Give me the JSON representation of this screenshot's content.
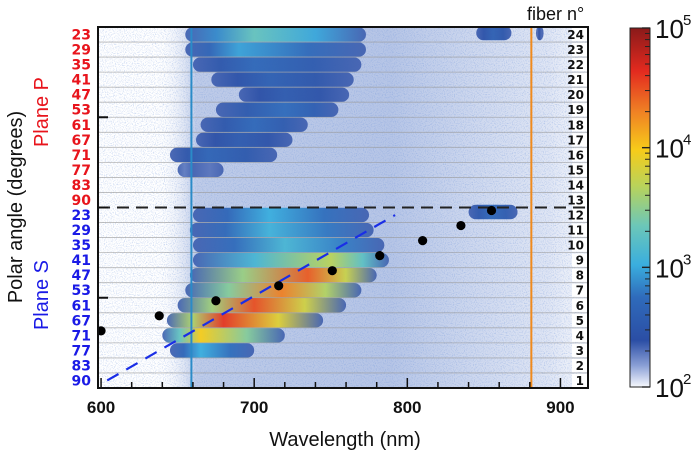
{
  "chart_data": {
    "type": "heatmap",
    "title": "",
    "xlabel": "Wavelength (nm)",
    "ylabel": "Polar angle (degrees)",
    "xlim": [
      598,
      918
    ],
    "xticks": [
      600,
      700,
      800,
      900
    ],
    "colorbar": {
      "scale": "log",
      "range": [
        100,
        100000
      ],
      "ticks": [
        {
          "base": "10",
          "exp": "2"
        },
        {
          "base": "10",
          "exp": "3"
        },
        {
          "base": "10",
          "exp": "4"
        },
        {
          "base": "10",
          "exp": "5"
        }
      ],
      "colors": [
        "#ffffff",
        "#2e4fa8",
        "#3aa8d8",
        "#9ccf6a",
        "#f5cc1a",
        "#ef7a22",
        "#e02020",
        "#8a1a1a"
      ]
    },
    "fiber_header": "fiber n°",
    "planes": [
      {
        "name": "Plane P",
        "color": "#e8141c",
        "angles": [
          "23",
          "29",
          "35",
          "41",
          "47",
          "53",
          "61",
          "67",
          "71",
          "77",
          "83",
          "90"
        ],
        "fibers": [
          "24",
          "23",
          "22",
          "21",
          "20",
          "19",
          "18",
          "17",
          "16",
          "15",
          "14",
          "13"
        ]
      },
      {
        "name": "Plane S",
        "color": "#1a1ae6",
        "angles": [
          "23",
          "29",
          "35",
          "41",
          "47",
          "53",
          "61",
          "67",
          "71",
          "77",
          "83",
          "90"
        ],
        "fibers": [
          "12",
          "11",
          "10",
          "9",
          "8",
          "7",
          "6",
          "5",
          "4",
          "3",
          "2",
          "1"
        ]
      }
    ],
    "vertical_lines": [
      {
        "name": "blue-cutoff",
        "x": 659,
        "color": "#2a8bc8"
      },
      {
        "name": "orange-cutoff",
        "x": 881,
        "color": "#f08a1c"
      }
    ],
    "plane_divider": {
      "between_fibers": [
        12,
        13
      ],
      "style": "dashed",
      "color": "#222222"
    },
    "fit_line": {
      "color": "#1a2ee6",
      "style": "dashed",
      "points": [
        [
          604,
          1
        ],
        [
          792,
          12
        ]
      ]
    },
    "markers": [
      {
        "wavelength": 600,
        "fiber": 4.3
      },
      {
        "wavelength": 638,
        "fiber": 5.3
      },
      {
        "wavelength": 675,
        "fiber": 6.3
      },
      {
        "wavelength": 716,
        "fiber": 7.3
      },
      {
        "wavelength": 751,
        "fiber": 8.3
      },
      {
        "wavelength": 782,
        "fiber": 9.3
      },
      {
        "wavelength": 810,
        "fiber": 10.3
      },
      {
        "wavelength": 835,
        "fiber": 11.3
      },
      {
        "wavelength": 855,
        "fiber": 12.3
      }
    ],
    "bands": [
      {
        "fiber": 24,
        "start": 655,
        "end": 773,
        "peak_log": 3.3,
        "peak_at": 700
      },
      {
        "fiber": 23,
        "start": 655,
        "end": 773,
        "peak_log": 2.95,
        "peak_at": 690
      },
      {
        "fiber": 22,
        "start": 660,
        "end": 770,
        "peak_log": 2.7,
        "peak_at": 700
      },
      {
        "fiber": 21,
        "start": 672,
        "end": 765,
        "peak_log": 2.6,
        "peak_at": 710
      },
      {
        "fiber": 20,
        "start": 690,
        "end": 762,
        "peak_log": 2.55,
        "peak_at": 720
      },
      {
        "fiber": 19,
        "start": 675,
        "end": 755,
        "peak_log": 2.75,
        "peak_at": 720
      },
      {
        "fiber": 18,
        "start": 665,
        "end": 735,
        "peak_log": 2.7,
        "peak_at": 700
      },
      {
        "fiber": 17,
        "start": 662,
        "end": 725,
        "peak_log": 2.55,
        "peak_at": 690
      },
      {
        "fiber": 16,
        "start": 645,
        "end": 715,
        "peak_log": 2.65,
        "peak_at": 670
      },
      {
        "fiber": 15,
        "start": 650,
        "end": 680,
        "peak_log": 2.35,
        "peak_at": 660
      },
      {
        "fiber": 12,
        "start": 660,
        "end": 775,
        "peak_log": 3.0,
        "peak_at": 710
      },
      {
        "fiber": 11,
        "start": 658,
        "end": 778,
        "peak_log": 3.05,
        "peak_at": 710
      },
      {
        "fiber": 10,
        "start": 660,
        "end": 785,
        "peak_log": 3.1,
        "peak_at": 720
      },
      {
        "fiber": 9,
        "start": 660,
        "end": 788,
        "peak_log": 3.7,
        "peak_at": 750
      },
      {
        "fiber": 8,
        "start": 658,
        "end": 780,
        "peak_log": 4.45,
        "peak_at": 735
      },
      {
        "fiber": 7,
        "start": 655,
        "end": 770,
        "peak_log": 4.3,
        "peak_at": 718
      },
      {
        "fiber": 6,
        "start": 650,
        "end": 760,
        "peak_log": 4.5,
        "peak_at": 700
      },
      {
        "fiber": 5,
        "start": 643,
        "end": 745,
        "peak_log": 4.6,
        "peak_at": 680
      },
      {
        "fiber": 4,
        "start": 640,
        "end": 720,
        "peak_log": 4.0,
        "peak_at": 665
      },
      {
        "fiber": 3,
        "start": 645,
        "end": 700,
        "peak_log": 3.0,
        "peak_at": 665
      },
      {
        "fiber": 12.2,
        "start": 840,
        "end": 872,
        "peak_log": 2.7,
        "peak_at": 855
      },
      {
        "fiber": 24.1,
        "start": 845,
        "end": 868,
        "peak_log": 2.6,
        "peak_at": 856
      },
      {
        "fiber": 24.1,
        "start": 884,
        "end": 889,
        "peak_log": 2.4,
        "peak_at": 886
      }
    ]
  }
}
